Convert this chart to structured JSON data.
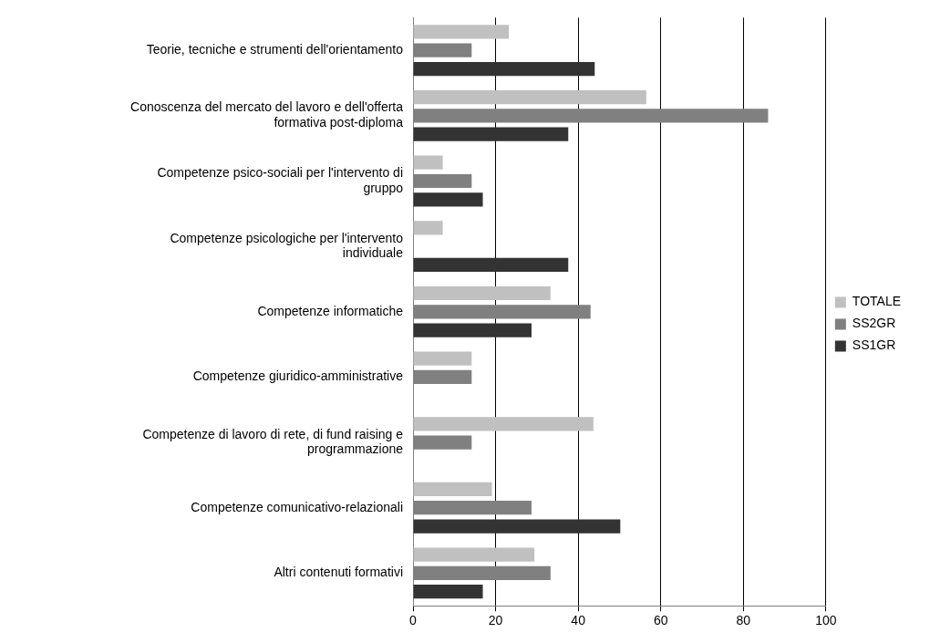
{
  "chart_data": {
    "type": "bar",
    "orientation": "horizontal",
    "categories": [
      "Teorie, tecniche e strumenti dell'orientamento",
      "Conoscenza del mercato del lavoro e dell'offerta formativa post-diploma",
      "Competenze psico-sociali per l'intervento di gruppo",
      "Competenze psicologiche per l'intervento individuale",
      "Competenze informatiche",
      "Competenze giuridico-amministrative",
      "Competenze di lavoro di rete, di fund raising e programmazione",
      "Competenze comunicativo-relazionali",
      "Altri contenuti formativi"
    ],
    "series": [
      {
        "name": "TOTALE",
        "color": "#c0c0c0",
        "values": [
          23.2,
          56.5,
          7.2,
          7.2,
          33.3,
          14.2,
          43.7,
          19.1,
          29.4
        ]
      },
      {
        "name": "SS2GR",
        "color": "#808080",
        "values": [
          14.2,
          86,
          14.2,
          null,
          43,
          14.2,
          14.2,
          28.7,
          33.3
        ]
      },
      {
        "name": "SS1GR",
        "color": "#333333",
        "values": [
          44,
          37.6,
          16.9,
          37.6,
          28.7,
          null,
          null,
          50.2,
          16.9
        ]
      }
    ],
    "xlim": [
      0,
      100
    ],
    "xticks": [
      0,
      20,
      40,
      60,
      80,
      100
    ],
    "grid": "x",
    "legend": "right"
  }
}
